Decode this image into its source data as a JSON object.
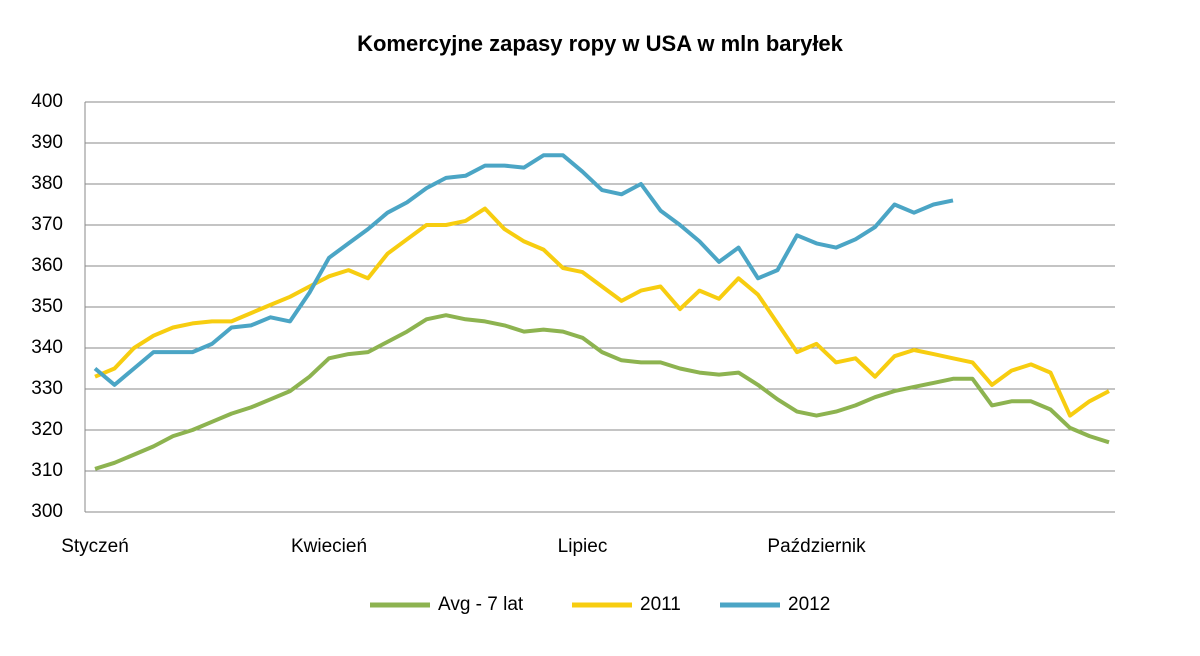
{
  "chart_data": {
    "type": "line",
    "title": "Komercyjne zapasy ropy w USA w mln baryłek",
    "categories": [
      "Styczeń",
      null,
      null,
      null,
      null,
      null,
      null,
      null,
      null,
      null,
      null,
      null,
      "Kwiecień",
      null,
      null,
      null,
      null,
      null,
      null,
      null,
      null,
      null,
      null,
      null,
      null,
      "Lipiec",
      null,
      null,
      null,
      null,
      null,
      null,
      null,
      null,
      null,
      null,
      null,
      "Październik",
      null,
      null,
      null,
      null,
      null,
      null,
      null,
      null,
      null,
      null,
      null,
      null,
      null,
      null,
      null
    ],
    "ylim": [
      300,
      400
    ],
    "yticks": [
      300,
      310,
      320,
      330,
      340,
      350,
      360,
      370,
      380,
      390,
      400
    ],
    "grid": true,
    "legend": "bottom",
    "series": [
      {
        "name": "Avg - 7 lat",
        "color": "#8db350",
        "values": [
          310.5,
          312,
          314,
          316,
          318.5,
          320,
          322,
          324,
          325.5,
          327.5,
          329.5,
          333,
          337.5,
          338.5,
          339,
          341.5,
          344,
          347,
          348,
          347,
          346.5,
          345.5,
          344,
          344.5,
          344,
          342.5,
          339,
          337,
          336.5,
          336.5,
          335,
          334,
          333.5,
          334,
          331,
          327.5,
          324.5,
          323.5,
          324.5,
          326,
          328,
          329.5,
          330.5,
          331.5,
          332.5,
          332.5,
          326,
          327,
          327,
          325,
          320.5,
          318.5,
          317
        ]
      },
      {
        "name": "2011",
        "color": "#f7cd10",
        "values": [
          333,
          335,
          340,
          343,
          345,
          346,
          346.5,
          346.5,
          348.5,
          350.5,
          352.5,
          355,
          357.5,
          359,
          357,
          363,
          366.5,
          370,
          370,
          371,
          374,
          369,
          366,
          364,
          359.5,
          358.5,
          355,
          351.5,
          354,
          355,
          349.5,
          354,
          352,
          357,
          353,
          346,
          339,
          341,
          336.5,
          337.5,
          333,
          338,
          339.5,
          338.5,
          337.5,
          336.5,
          331,
          334.5,
          336,
          334,
          323.5,
          327,
          329.5
        ]
      },
      {
        "name": "2012",
        "color": "#4ba5c5",
        "values": [
          335,
          331,
          335,
          339,
          339,
          339,
          341,
          345,
          345.5,
          347.5,
          346.5,
          353.5,
          362,
          365.5,
          369,
          373,
          375.5,
          379,
          381.5,
          382,
          384.5,
          384.5,
          384,
          387,
          387,
          383,
          378.5,
          377.5,
          380,
          373.5,
          370,
          366,
          361,
          364.5,
          357,
          359,
          367.5,
          365.5,
          364.5,
          366.5,
          369.5,
          375,
          373,
          375,
          376,
          null,
          null,
          null,
          null,
          null,
          null,
          null,
          null
        ]
      }
    ]
  }
}
